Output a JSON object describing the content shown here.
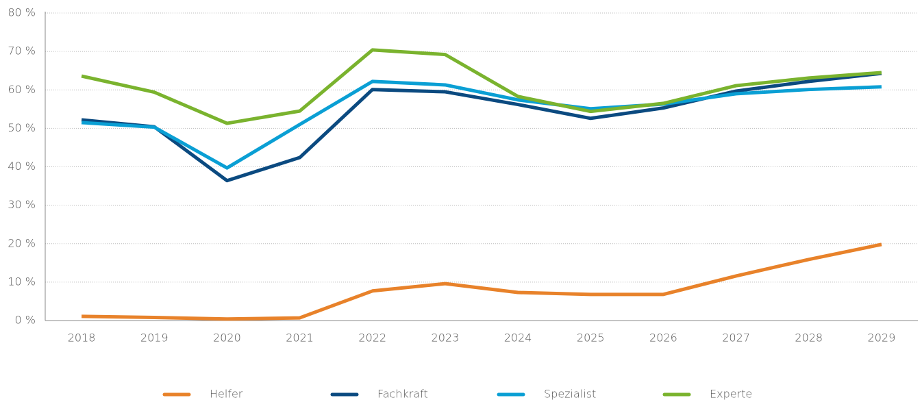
{
  "chart_data": {
    "type": "line",
    "categories": [
      "2018",
      "2019",
      "2020",
      "2021",
      "2022",
      "2023",
      "2024",
      "2025",
      "2026",
      "2027",
      "2028",
      "2029"
    ],
    "series": [
      {
        "name": "Helfer",
        "color": "#e8822a",
        "values": [
          1.1,
          0.8,
          0.4,
          0.7,
          7.7,
          9.6,
          7.3,
          6.8,
          6.8,
          11.6,
          15.9,
          19.8
        ]
      },
      {
        "name": "Fachkraft",
        "color": "#0b4a80",
        "values": [
          52.2,
          50.4,
          36.4,
          42.4,
          60.1,
          59.5,
          56.2,
          52.6,
          55.3,
          59.7,
          62.2,
          64.3
        ]
      },
      {
        "name": "Spezialist",
        "color": "#0a9fd4",
        "values": [
          51.5,
          50.3,
          39.7,
          51.0,
          62.2,
          61.3,
          57.4,
          55.1,
          56.3,
          59.0,
          60.1,
          60.8
        ]
      },
      {
        "name": "Experte",
        "color": "#7ab32e",
        "values": [
          63.6,
          59.4,
          51.3,
          54.5,
          70.4,
          69.2,
          58.3,
          54.4,
          56.5,
          61.1,
          63.1,
          64.5
        ]
      }
    ],
    "ylim": [
      0,
      80
    ],
    "yticks": [
      {
        "value": 0,
        "label": "0 %"
      },
      {
        "value": 10,
        "label": "10 %"
      },
      {
        "value": 20,
        "label": "20 %"
      },
      {
        "value": 30,
        "label": "30 %"
      },
      {
        "value": 40,
        "label": "40 %"
      },
      {
        "value": 50,
        "label": "50 %"
      },
      {
        "value": 60,
        "label": "60 %"
      },
      {
        "value": 70,
        "label": "70 %"
      },
      {
        "value": 80,
        "label": "80 %"
      }
    ],
    "grid": true,
    "legend": "bottom"
  }
}
